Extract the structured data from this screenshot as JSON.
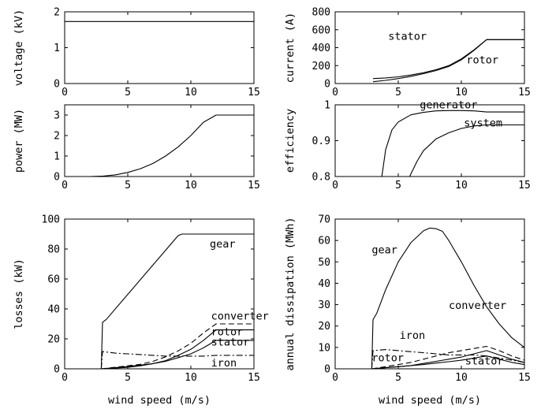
{
  "chart_data": [
    {
      "id": "voltage",
      "type": "line",
      "ylabel": "voltage (kV)",
      "xlabel": "",
      "xlim": [
        0,
        15
      ],
      "ylim": [
        0,
        2
      ],
      "xticks": [
        0,
        5,
        10,
        15
      ],
      "yticks": [
        0,
        1,
        2
      ],
      "series": [
        {
          "style": "solid",
          "x": [
            0,
            15
          ],
          "y": [
            1.73,
            1.73
          ]
        }
      ],
      "annotations": []
    },
    {
      "id": "current",
      "type": "line",
      "ylabel": "current (A)",
      "xlabel": "",
      "xlim": [
        0,
        15
      ],
      "ylim": [
        0,
        800
      ],
      "xticks": [
        0,
        5,
        10,
        15
      ],
      "yticks": [
        0,
        200,
        400,
        600,
        800
      ],
      "series": [
        {
          "name": "stator",
          "style": "solid",
          "x": [
            3,
            4,
            5,
            6,
            7,
            8,
            9,
            10,
            11,
            12,
            13,
            14,
            15
          ],
          "y": [
            55,
            62,
            75,
            95,
            120,
            155,
            200,
            275,
            375,
            490,
            490,
            490,
            490
          ]
        },
        {
          "name": "rotor",
          "style": "solid",
          "x": [
            3,
            4,
            5,
            6,
            7,
            8,
            9,
            10,
            11,
            12,
            13,
            14,
            15
          ],
          "y": [
            20,
            35,
            55,
            80,
            110,
            145,
            190,
            265,
            370,
            490,
            490,
            490,
            490
          ]
        }
      ],
      "annotations": [
        {
          "text": "stator",
          "x": 4.2,
          "y": 490
        },
        {
          "text": "rotor",
          "x": 10.4,
          "y": 225
        }
      ]
    },
    {
      "id": "power",
      "type": "line",
      "ylabel": "power (MW)",
      "xlabel": "",
      "xlim": [
        0,
        15
      ],
      "ylim": [
        0,
        3.5
      ],
      "xticks": [
        0,
        5,
        10,
        15
      ],
      "yticks": [
        0,
        1,
        2,
        3
      ],
      "series": [
        {
          "style": "solid",
          "x": [
            0,
            1,
            2,
            3,
            4,
            5,
            6,
            7,
            8,
            9,
            10,
            11,
            12,
            13,
            14,
            15
          ],
          "y": [
            0,
            0,
            0,
            0.02,
            0.08,
            0.2,
            0.38,
            0.64,
            1.0,
            1.45,
            2.0,
            2.65,
            3.0,
            3.0,
            3.0,
            3.0
          ]
        }
      ],
      "annotations": []
    },
    {
      "id": "efficiency",
      "type": "line",
      "ylabel": "efficiency",
      "xlabel": "",
      "xlim": [
        0,
        15
      ],
      "ylim": [
        0.8,
        1
      ],
      "xticks": [
        0,
        5,
        10,
        15
      ],
      "yticks": [
        0.8,
        0.9,
        1
      ],
      "series": [
        {
          "name": "generator",
          "style": "solid",
          "x": [
            3.7,
            4,
            4.5,
            5,
            6,
            7,
            8,
            9,
            10,
            11,
            12,
            13,
            14,
            15
          ],
          "y": [
            0.8,
            0.875,
            0.93,
            0.952,
            0.972,
            0.979,
            0.983,
            0.984,
            0.984,
            0.983,
            0.98,
            0.98,
            0.98,
            0.98
          ]
        },
        {
          "name": "system",
          "style": "solid",
          "x": [
            5.9,
            6.5,
            7,
            8,
            9,
            10,
            11,
            12,
            13,
            14,
            15
          ],
          "y": [
            0.8,
            0.843,
            0.872,
            0.905,
            0.922,
            0.934,
            0.941,
            0.944,
            0.944,
            0.944,
            0.944
          ]
        }
      ],
      "annotations": [
        {
          "text": "generator",
          "x": 6.7,
          "y": 0.99
        },
        {
          "text": "system",
          "x": 10.2,
          "y": 0.94
        }
      ]
    },
    {
      "id": "losses",
      "type": "line",
      "ylabel": "losses (kW)",
      "xlabel": "wind speed (m/s)",
      "xlim": [
        0,
        15
      ],
      "ylim": [
        0,
        100
      ],
      "xticks": [
        0,
        5,
        10,
        15
      ],
      "yticks": [
        0,
        20,
        40,
        60,
        80,
        100
      ],
      "series": [
        {
          "name": "gear",
          "style": "solid",
          "x": [
            2.9,
            3.0,
            3.3,
            9.0,
            9.3,
            10,
            11,
            12,
            13,
            14,
            15
          ],
          "y": [
            0,
            31,
            33,
            89,
            90,
            90,
            90,
            90,
            90,
            90,
            90
          ]
        },
        {
          "name": "converter",
          "style": "dashed",
          "x": [
            2.9,
            4,
            5,
            6,
            7,
            8,
            9,
            10,
            11,
            12,
            13,
            14,
            15
          ],
          "y": [
            0,
            1,
            2,
            3,
            5,
            8,
            12,
            17,
            24,
            30,
            30,
            30,
            30
          ]
        },
        {
          "name": "rotor",
          "style": "solid",
          "x": [
            2.9,
            4,
            5,
            6,
            7,
            8,
            9,
            10,
            11,
            12,
            13,
            14,
            15
          ],
          "y": [
            0,
            0.5,
            1,
            2,
            3.5,
            5.5,
            9,
            13,
            19,
            26,
            26,
            26,
            26
          ]
        },
        {
          "name": "stator",
          "style": "solid",
          "x": [
            2.9,
            4,
            5,
            6,
            7,
            8,
            9,
            10,
            11,
            12,
            13,
            14,
            15
          ],
          "y": [
            0,
            0.8,
            1.5,
            2.5,
            3.5,
            5,
            7.5,
            10,
            14,
            19,
            19,
            19,
            19
          ]
        },
        {
          "name": "iron",
          "style": "dashdot",
          "x": [
            2.9,
            3,
            4,
            5,
            6,
            7,
            8,
            9,
            10,
            11,
            12,
            13,
            14,
            15
          ],
          "y": [
            0,
            11.5,
            10.5,
            10,
            9.5,
            9,
            8.5,
            8.5,
            8.5,
            8.5,
            9,
            9,
            9,
            9
          ]
        }
      ],
      "annotations": [
        {
          "text": "gear",
          "x": 11.5,
          "y": 81
        },
        {
          "text": "converter",
          "x": 11.6,
          "y": 33
        },
        {
          "text": "rotor",
          "x": 11.6,
          "y": 22.5
        },
        {
          "text": "stator",
          "x": 11.6,
          "y": 15.5
        },
        {
          "text": "iron",
          "x": 11.6,
          "y": 1.5
        }
      ]
    },
    {
      "id": "dissipation",
      "type": "line",
      "ylabel": "annual dissipation (MWh)",
      "xlabel": "wind speed (m/s)",
      "xlim": [
        0,
        15
      ],
      "ylim": [
        0,
        70
      ],
      "xticks": [
        0,
        5,
        10,
        15
      ],
      "yticks": [
        0,
        10,
        20,
        30,
        40,
        50,
        60,
        70
      ],
      "series": [
        {
          "name": "gear",
          "style": "solid",
          "x": [
            2.9,
            3.0,
            3.3,
            4,
            5,
            6,
            7,
            7.5,
            8,
            8.5,
            9,
            10,
            11,
            12,
            13,
            14,
            15
          ],
          "y": [
            0,
            23,
            26,
            37,
            50,
            59,
            64.5,
            65.8,
            65.5,
            64.3,
            60,
            50,
            39,
            29,
            21,
            14.5,
            10
          ]
        },
        {
          "name": "converter",
          "style": "dashed",
          "x": [
            2.9,
            4,
            5,
            6,
            7,
            8,
            9,
            10,
            11,
            12,
            13,
            14,
            15
          ],
          "y": [
            0,
            1,
            2,
            3,
            4.5,
            6,
            7.5,
            8.5,
            9.5,
            10.5,
            8.5,
            6,
            4
          ]
        },
        {
          "name": "iron",
          "style": "dashdot",
          "x": [
            2.9,
            3,
            4,
            5,
            6,
            7,
            8,
            9,
            10,
            11,
            12,
            13,
            14,
            15
          ],
          "y": [
            0,
            8.5,
            9,
            8.5,
            8,
            7.5,
            7,
            6.5,
            6.5,
            6.5,
            6,
            5,
            4,
            3
          ]
        },
        {
          "name": "rotor",
          "style": "solid",
          "x": [
            2.9,
            4,
            5,
            6,
            7,
            8,
            9,
            10,
            11,
            12,
            13,
            14,
            15
          ],
          "y": [
            0,
            0.5,
            1,
            1.5,
            2.5,
            3.5,
            4.5,
            5.5,
            7,
            8.5,
            6.5,
            4.5,
            3
          ]
        },
        {
          "name": "stator",
          "style": "solid",
          "x": [
            2.9,
            4,
            5,
            6,
            7,
            8,
            9,
            10,
            11,
            12,
            13,
            14,
            15
          ],
          "y": [
            0,
            0.5,
            1,
            1.5,
            2,
            2.7,
            3.3,
            4,
            5,
            6,
            4.5,
            3,
            2
          ]
        }
      ],
      "annotations": [
        {
          "text": "gear",
          "x": 2.9,
          "y": 54
        },
        {
          "text": "converter",
          "x": 9.0,
          "y": 28
        },
        {
          "text": "iron",
          "x": 5.1,
          "y": 14
        },
        {
          "text": "rotor",
          "x": 2.9,
          "y": 3.5
        },
        {
          "text": "stator",
          "x": 10.3,
          "y": 2
        }
      ]
    }
  ]
}
